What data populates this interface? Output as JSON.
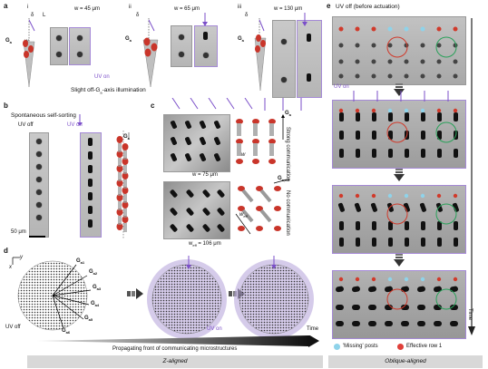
{
  "panels": {
    "a": {
      "label": "a",
      "sub_i": "i",
      "sub_ii": "ii",
      "sub_iii": "iii",
      "delta": "δ",
      "L": "L",
      "Ga": "G",
      "Ga_sub": "a",
      "w": "w",
      "width_i": "w = 45 μm",
      "width_ii": "w = 65 μm",
      "width_iii": "w = 130 μm",
      "uv_on": "UV on",
      "caption": "Slight off-G",
      "caption_sub": "a",
      "caption_tail": "-axis illumination"
    },
    "b": {
      "label": "b",
      "title": "Spontaneous self-sorting",
      "uv_off": "UV off",
      "uv_on": "UV on",
      "scale": "50 μm",
      "Ga": "G",
      "Ga_sub": "a"
    },
    "c": {
      "label": "c",
      "w_top": "w = 75 μm",
      "w_bottom": "w",
      "w_bottom_sub": "eff",
      "w_bottom_tail": " = 106 μm",
      "strong": "Strong communication",
      "no": "No communication",
      "Ga": "G",
      "Ga_sub": "a",
      "Ga_eff_sub": "a,eff",
      "w": "w",
      "w_eff": "w",
      "w_eff_sub": "eff"
    },
    "d": {
      "label": "d",
      "x": "x",
      "y": "y",
      "g_labels": [
        "G",
        "G",
        "G",
        "G",
        "G",
        "G"
      ],
      "g_subs": [
        "a1",
        "a2",
        "a3",
        "a4",
        "a5",
        "a6"
      ],
      "uv_off": "UV off",
      "uv_on": "UV on",
      "time": "Time",
      "front": "Propagating front of communicating microstructures"
    },
    "e": {
      "label": "e",
      "title": "UV off (before actuation)",
      "uv_on": "UV on",
      "time": "Time",
      "legend_missing": "'Missing' posts",
      "legend_row": "Effective row 1",
      "missing_color": "#8fd3ea",
      "row_color": "#e0403a"
    }
  },
  "footer": {
    "left": "Z-aligned",
    "right": "Oblique-aligned"
  },
  "colors": {
    "accent": "#7b4fc9",
    "red": "#d03a2b",
    "green": "#2aa15a"
  }
}
